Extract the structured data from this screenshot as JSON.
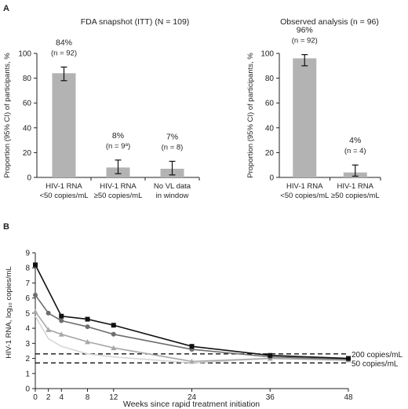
{
  "panel_a_label": "A",
  "panel_b_label": "B",
  "superscript_a": "a",
  "chart_data": [
    {
      "type": "bar",
      "title": "FDA snapshot (ITT) (N = 109)",
      "ylabel": "Proportion (95% CI) of participants, %",
      "ylim": [
        0,
        100
      ],
      "yticks": [
        0,
        20,
        40,
        60,
        80,
        100
      ],
      "categories": [
        [
          "HIV-1 RNA",
          "<50 copies/mL"
        ],
        [
          "HIV-1 RNA",
          "≥50 copies/mL"
        ],
        [
          "No VL data",
          "in window"
        ]
      ],
      "values": [
        84,
        8,
        7
      ],
      "ci": [
        [
          78,
          89
        ],
        [
          3,
          14
        ],
        [
          2,
          13
        ]
      ],
      "value_labels": [
        "84%",
        "8%",
        "7%"
      ],
      "n_labels": [
        "(n = 92)",
        "(n = 9",
        "(n = 8)"
      ],
      "n_superscript": [
        null,
        "a",
        null
      ],
      "n_close": [
        null,
        ")",
        null
      ],
      "bar_color": "#b3b3b3"
    },
    {
      "type": "bar",
      "title": "Observed analysis (n = 96)",
      "ylabel": "Proportion (95% CI) of participants, %",
      "ylim": [
        0,
        100
      ],
      "yticks": [
        0,
        20,
        40,
        60,
        80,
        100
      ],
      "categories": [
        [
          "HIV-1 RNA",
          "<50 copies/mL"
        ],
        [
          "HIV-1 RNA",
          "≥50 copies/mL"
        ]
      ],
      "values": [
        96,
        4
      ],
      "ci": [
        [
          90,
          99
        ],
        [
          1,
          10
        ]
      ],
      "value_labels": [
        "96%",
        "4%"
      ],
      "n_labels": [
        "(n = 92)",
        "(n = 4)"
      ],
      "bar_color": "#b3b3b3"
    },
    {
      "type": "line",
      "xlabel": "Weeks since rapid treatment initiation",
      "ylabel": "HIV-1 RNA, log₁₀ copies/mL",
      "xlim": [
        0,
        48
      ],
      "ylim": [
        0,
        9
      ],
      "xticks": [
        0,
        2,
        4,
        8,
        12,
        24,
        36,
        48
      ],
      "yticks": [
        0,
        1,
        2,
        3,
        4,
        5,
        6,
        7,
        8,
        9
      ],
      "series": [
        {
          "marker": "square",
          "color": "#111111",
          "x": [
            0,
            4,
            8,
            12,
            24,
            36,
            48
          ],
          "y": [
            8.2,
            4.8,
            4.6,
            4.2,
            2.8,
            2.2,
            2.0
          ]
        },
        {
          "marker": "circle",
          "color": "#6e6e6e",
          "x": [
            0,
            2,
            4,
            8,
            12,
            24,
            36,
            48
          ],
          "y": [
            6.2,
            5.0,
            4.5,
            4.1,
            3.6,
            2.6,
            2.1,
            1.95
          ]
        },
        {
          "marker": "triangle",
          "color": "#a8a8a8",
          "x": [
            0,
            2,
            4,
            8,
            12,
            24,
            36,
            48
          ],
          "y": [
            5.1,
            3.9,
            3.6,
            3.1,
            2.7,
            1.8,
            2.0,
            1.9
          ]
        },
        {
          "marker": "none",
          "color": "#d6d6d6",
          "x": [
            0,
            2,
            4,
            8,
            12,
            24,
            36,
            48
          ],
          "y": [
            4.8,
            3.3,
            2.8,
            2.3,
            2.1,
            1.7,
            2.0,
            1.85
          ]
        }
      ],
      "reference_lines": [
        {
          "y": 2.3,
          "label": "200 copies/mL",
          "style": "dashed"
        },
        {
          "y": 1.7,
          "label": "50 copies/mL",
          "style": "dashed"
        }
      ],
      "grid": false
    }
  ]
}
